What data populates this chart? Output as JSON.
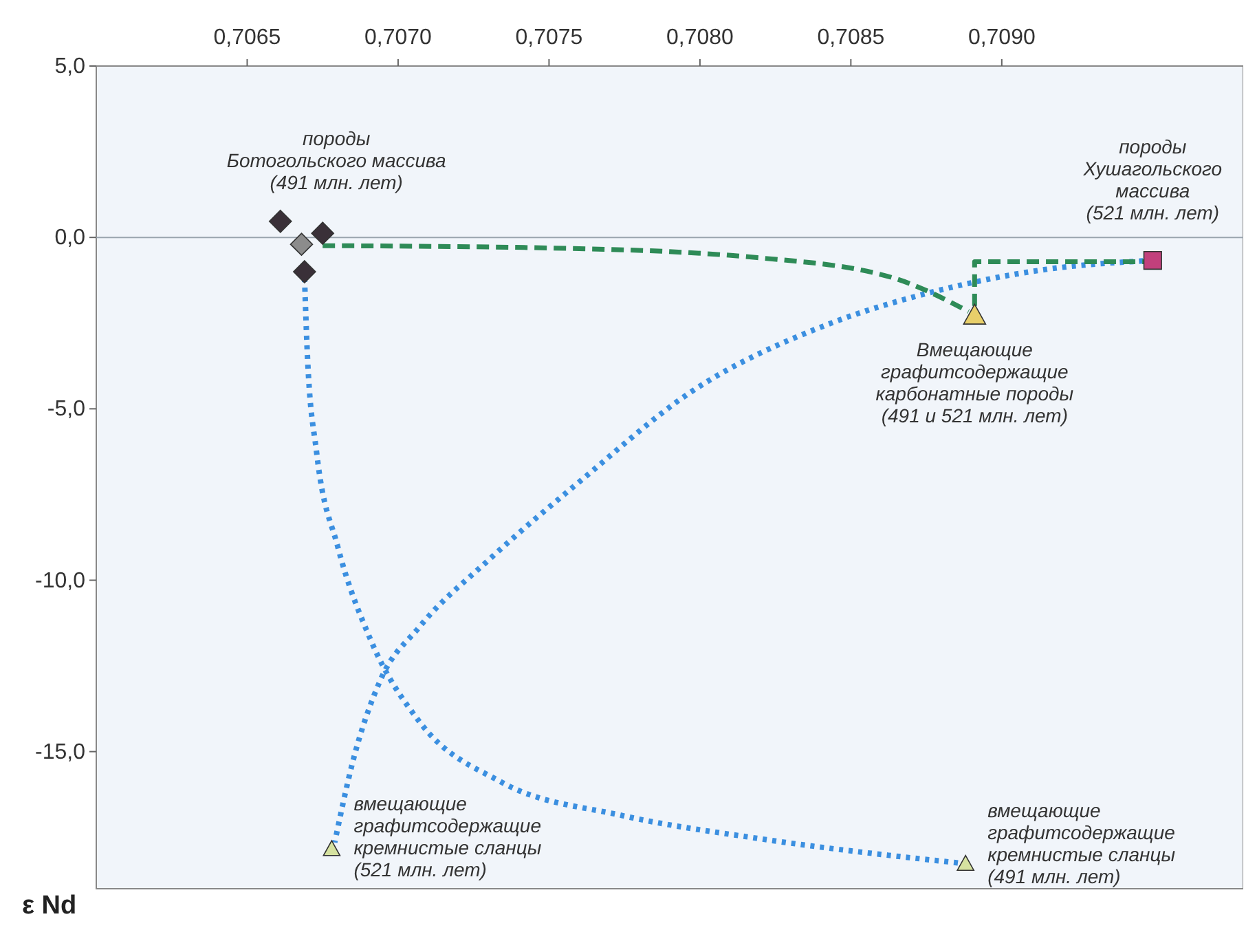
{
  "chart_data": {
    "type": "scatter",
    "ylabel": "ε Nd",
    "xlim": [
      0.706,
      0.7098
    ],
    "ylim": [
      -19,
      5
    ],
    "xticks": [
      {
        "value": 0.7065,
        "label": "0,7065"
      },
      {
        "value": 0.707,
        "label": "0,7070"
      },
      {
        "value": 0.7075,
        "label": "0,7075"
      },
      {
        "value": 0.708,
        "label": "0,7080"
      },
      {
        "value": 0.7085,
        "label": "0,7085"
      },
      {
        "value": 0.709,
        "label": "0,7090"
      }
    ],
    "yticks": [
      {
        "value": 5,
        "label": "5,0"
      },
      {
        "value": 0,
        "label": "0,0"
      },
      {
        "value": -5,
        "label": "-5,0"
      },
      {
        "value": -10,
        "label": "-10,0"
      },
      {
        "value": -15,
        "label": "-15,0"
      }
    ],
    "grid": false,
    "ref_lines": [
      {
        "axis": "y",
        "value": 0,
        "color": "#9aa4ae"
      }
    ],
    "series": [
      {
        "type": "line",
        "line_style": "dotted",
        "color": "#3b8fe0",
        "x": [
          0.7095,
          0.70914,
          0.70878,
          0.70842,
          0.70797,
          0.70761,
          0.7073,
          0.70707,
          0.70694,
          0.70685,
          0.70679
        ],
        "values": [
          -0.67,
          -0.94,
          -1.57,
          -2.55,
          -4.51,
          -7.06,
          -9.41,
          -11.37,
          -12.94,
          -15.29,
          -17.65
        ]
      },
      {
        "type": "line",
        "line_style": "dotted",
        "color": "#3b8fe0",
        "x": [
          0.70669,
          0.7067,
          0.70673,
          0.7068,
          0.70691,
          0.70707,
          0.70734,
          0.70774,
          0.70819,
          0.70888
        ],
        "values": [
          -1.18,
          -3.53,
          -6.27,
          -9.02,
          -11.76,
          -14.12,
          -15.88,
          -16.86,
          -17.53,
          -18.27
        ]
      },
      {
        "type": "line",
        "line_style": "dashed",
        "color": "#2e8b57",
        "x": [
          0.70675,
          0.70751,
          0.70819,
          0.70864,
          0.70889
        ],
        "values": [
          -0.24,
          -0.31,
          -0.59,
          -1.18,
          -2.16
        ]
      },
      {
        "type": "line",
        "line_style": "dashed",
        "color": "#2e8b57",
        "x": [
          0.70891,
          0.70891,
          0.70921,
          0.7095
        ],
        "values": [
          -2.0,
          -0.71,
          -0.71,
          -0.71
        ]
      },
      {
        "marker": "diamond",
        "color": "#3a3038",
        "x": [
          0.70661,
          0.70675,
          0.70669
        ],
        "values": [
          0.47,
          0.12,
          -1.0
        ]
      },
      {
        "marker": "diamond",
        "color": "#8c8c8c",
        "x": [
          0.70668
        ],
        "values": [
          -0.2
        ]
      },
      {
        "marker": "square",
        "color": "#c2407c",
        "x": [
          0.7095
        ],
        "values": [
          -0.67
        ]
      },
      {
        "marker": "triangle",
        "color": "#e8cf6a",
        "x": [
          0.70891
        ],
        "values": [
          -2.27
        ]
      },
      {
        "marker": "triangle",
        "color": "#d6e2a0",
        "x": [
          0.70678,
          0.70888
        ],
        "values": [
          -17.84,
          -18.27
        ]
      }
    ],
    "annotations": [
      {
        "text": "породы\nБотогольского массива\n(491 млн. лет)",
        "x": 0.70675,
        "y": 0.12
      },
      {
        "text": "породы\nХушагольского\nмассива\n(521 млн. лет)",
        "x": 0.7095,
        "y": -0.67
      },
      {
        "text": "Вмещающие\nграфитсодержащие\nкарбонатные породы\n(491 и 521 млн. лет)",
        "x": 0.70891,
        "y": -2.27
      },
      {
        "text": "вмещающие\nграфитсодержащие\nкремнистые сланцы\n(521 млн. лет)",
        "x": 0.70678,
        "y": -17.84
      },
      {
        "text": "вмещающие\nграфитсодержащие\nкремнистые сланцы\n(491 млн. лет)",
        "x": 0.70888,
        "y": -18.27
      }
    ]
  }
}
